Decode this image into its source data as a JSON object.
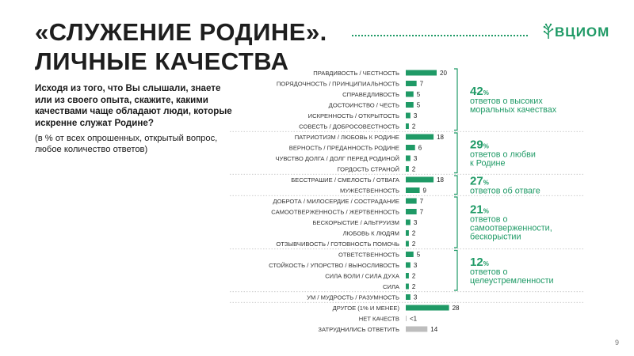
{
  "slide": {
    "title_line1": "«СЛУЖЕНИЕ РОДИНЕ».",
    "title_line2": "ЛИЧНЫЕ КАЧЕСТВА",
    "logo_text": "ВЦИОМ",
    "question": "Исходя из того, что Вы слышали, знаете или из своего опыта, скажите, какими качествами чаще обладают люди, которые искренне служат Родине?",
    "note": "(в % от всех опрошенных, открытый вопрос, любое количество ответов)",
    "page_number": "9"
  },
  "chart_data": {
    "type": "bar",
    "orientation": "horizontal",
    "categories": [
      "Правдивость / честность",
      "Порядочность / принципиальность",
      "Справедливость",
      "Достоинство / честь",
      "Искренность / открытость",
      "Совесть / добросовестность",
      "Патриотизм / любовь к Родине",
      "Верность / преданность Родине",
      "Чувство долга / долг перед Родиной",
      "Гордость страной",
      "Бесстрашие / смелость / отвага",
      "Мужественность",
      "Доброта / милосердие / сострадание",
      "Самоотверженность / жертвенность",
      "Бескорыстие / альтруизм",
      "Любовь к людям",
      "Отзывчивость / готовность помочь",
      "Ответственность",
      "Стойкость / упорство / выносливость",
      "Сила воли / сила духа",
      "Сила",
      "Ум / мудрость / разумность",
      "Другое (1% и менее)",
      "Нет качеств",
      "Затруднились ответить"
    ],
    "values": [
      20,
      7,
      5,
      5,
      3,
      2,
      18,
      6,
      3,
      2,
      18,
      9,
      7,
      7,
      3,
      2,
      2,
      5,
      3,
      2,
      2,
      3,
      28,
      0.5,
      14
    ],
    "value_labels": [
      "20",
      "7",
      "5",
      "5",
      "3",
      "2",
      "18",
      "6",
      "3",
      "2",
      "18",
      "9",
      "7",
      "7",
      "3",
      "2",
      "2",
      "5",
      "3",
      "2",
      "2",
      "3",
      "28",
      "<1",
      "14"
    ],
    "bar_colors": [
      "#1f9a66",
      "#1f9a66",
      "#1f9a66",
      "#1f9a66",
      "#1f9a66",
      "#1f9a66",
      "#1f9a66",
      "#1f9a66",
      "#1f9a66",
      "#1f9a66",
      "#1f9a66",
      "#1f9a66",
      "#1f9a66",
      "#1f9a66",
      "#1f9a66",
      "#1f9a66",
      "#1f9a66",
      "#1f9a66",
      "#1f9a66",
      "#1f9a66",
      "#1f9a66",
      "#1f9a66",
      "#1f9a66",
      "#bdbdbd",
      "#bdbdbd"
    ],
    "groups": [
      {
        "first": 0,
        "last": 5,
        "percent": "42",
        "text": [
          "ответов о высоких",
          "моральных качествах"
        ]
      },
      {
        "first": 6,
        "last": 9,
        "percent": "29",
        "text": [
          "ответов о любви",
          "к Родине"
        ]
      },
      {
        "first": 10,
        "last": 11,
        "percent": "27",
        "text": [
          "ответов об отваге"
        ]
      },
      {
        "first": 12,
        "last": 16,
        "percent": "21",
        "text": [
          "ответов о",
          "самоотверженности,",
          "бескорыстии"
        ]
      },
      {
        "first": 17,
        "last": 20,
        "percent": "12",
        "text": [
          "ответов о",
          "целеустремленности"
        ]
      }
    ],
    "percent_sign": "%",
    "xlim": [
      0,
      28
    ],
    "grid": false,
    "legend": "none"
  }
}
